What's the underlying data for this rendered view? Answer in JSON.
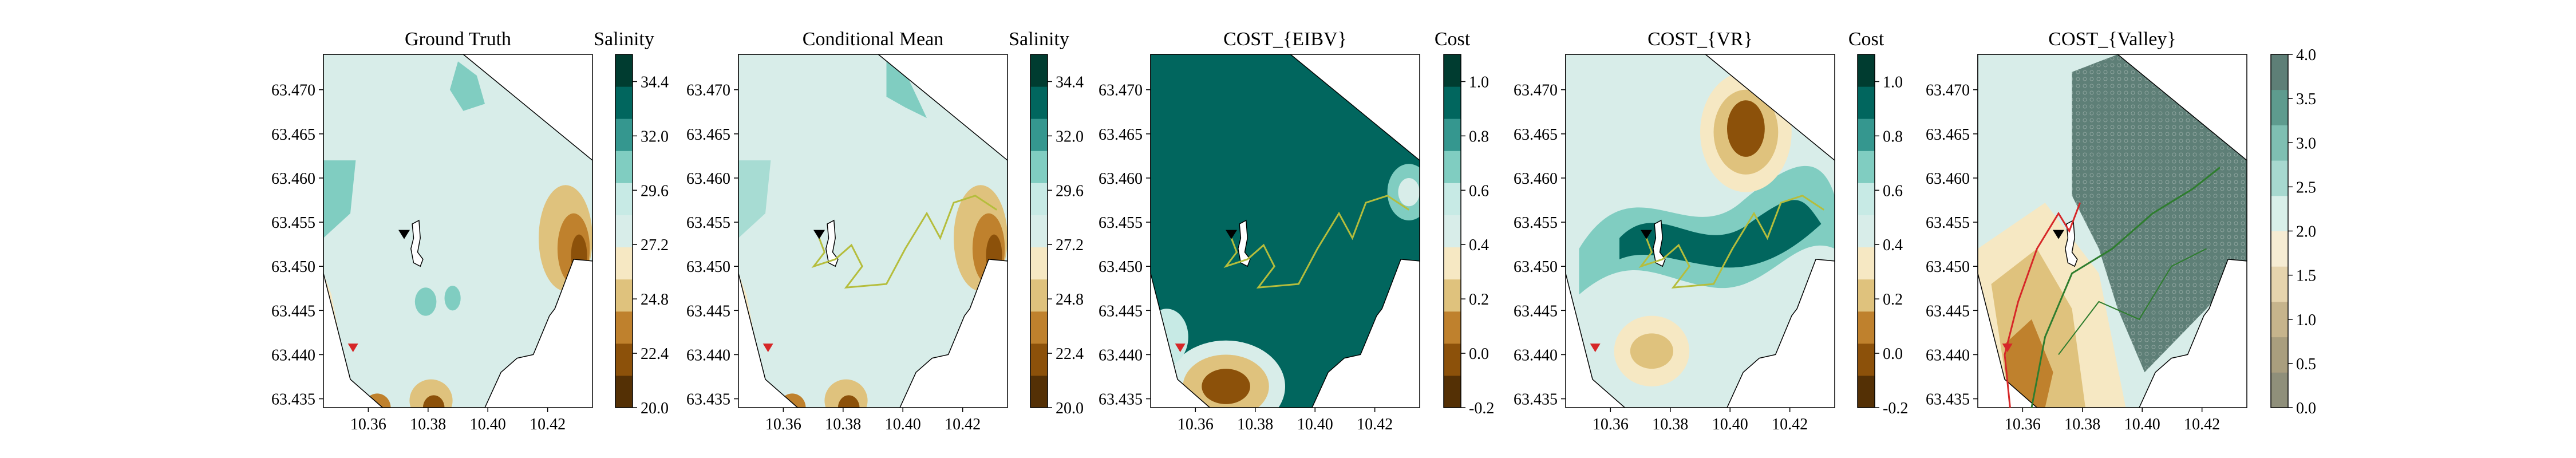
{
  "colors": {
    "brbg": [
      "#543005",
      "#8c510a",
      "#bf812d",
      "#dfc27d",
      "#f6e8c3",
      "#d8ede9",
      "#c7eae5",
      "#80cdc1",
      "#35978f",
      "#01665e",
      "#003c30"
    ],
    "track_yellow": "#b5bd3c",
    "track_red": "#d62728",
    "track_green": "#2e7d2e",
    "mask_gray": "#5e7f77"
  },
  "chart_data": [
    {
      "type": "contour",
      "title": "Ground Truth",
      "colorbar_label": "Salinity",
      "colorbar_ticks": [
        "34.4",
        "32.0",
        "29.6",
        "27.2",
        "24.8",
        "22.4",
        "20.0"
      ],
      "vmin": 20.0,
      "vmax": 35.6,
      "xticks": [
        "10.36",
        "10.38",
        "10.40",
        "10.42"
      ],
      "yticks": [
        "63.470",
        "63.465",
        "63.460",
        "63.455",
        "63.450",
        "63.445",
        "63.440",
        "63.435"
      ],
      "xlim": [
        10.345,
        10.435
      ],
      "ylim": [
        63.434,
        63.474
      ],
      "background_value": 28.5
    },
    {
      "type": "contour",
      "title": "Conditional Mean",
      "colorbar_label": "Salinity",
      "colorbar_ticks": [
        "34.4",
        "32.0",
        "29.6",
        "27.2",
        "24.8",
        "22.4",
        "20.0"
      ],
      "vmin": 20.0,
      "vmax": 35.6,
      "xticks": [
        "10.36",
        "10.38",
        "10.40",
        "10.42"
      ],
      "yticks": [
        "63.470",
        "63.465",
        "63.460",
        "63.455",
        "63.450",
        "63.445",
        "63.440",
        "63.435"
      ],
      "xlim": [
        10.345,
        10.435
      ],
      "ylim": [
        63.434,
        63.474
      ],
      "background_value": 28.2
    },
    {
      "type": "contour",
      "title": "COST_{EIBV}",
      "colorbar_label": "Cost",
      "colorbar_ticks": [
        "1.0",
        "0.8",
        "0.6",
        "0.4",
        "0.2",
        "0.0",
        "-0.2"
      ],
      "vmin": -0.2,
      "vmax": 1.1,
      "xticks": [
        "10.36",
        "10.38",
        "10.40",
        "10.42"
      ],
      "yticks": [
        "63.470",
        "63.465",
        "63.460",
        "63.455",
        "63.450",
        "63.445",
        "63.440",
        "63.435"
      ],
      "xlim": [
        10.345,
        10.435
      ],
      "ylim": [
        63.434,
        63.474
      ],
      "background_value": 0.95
    },
    {
      "type": "contour",
      "title": "COST_{VR}",
      "colorbar_label": "Cost",
      "colorbar_ticks": [
        "1.0",
        "0.8",
        "0.6",
        "0.4",
        "0.2",
        "0.0",
        "-0.2"
      ],
      "vmin": -0.2,
      "vmax": 1.1,
      "xticks": [
        "10.36",
        "10.38",
        "10.40",
        "10.42"
      ],
      "yticks": [
        "63.470",
        "63.465",
        "63.460",
        "63.455",
        "63.450",
        "63.445",
        "63.440",
        "63.435"
      ],
      "xlim": [
        10.345,
        10.435
      ],
      "ylim": [
        63.434,
        63.474
      ],
      "background_value": 0.5
    },
    {
      "type": "contour",
      "title": "COST_{Valley}",
      "colorbar_label": "",
      "colorbar_ticks": [
        "4.0",
        "3.5",
        "3.0",
        "2.5",
        "2.0",
        "1.5",
        "1.0",
        "0.5",
        "0.0"
      ],
      "vmin": 0.0,
      "vmax": 4.0,
      "xticks": [
        "10.36",
        "10.38",
        "10.40",
        "10.42"
      ],
      "yticks": [
        "63.470",
        "63.465",
        "63.460",
        "63.455",
        "63.450",
        "63.445",
        "63.440",
        "63.435"
      ],
      "xlim": [
        10.345,
        10.435
      ],
      "ylim": [
        63.434,
        63.474
      ]
    }
  ]
}
